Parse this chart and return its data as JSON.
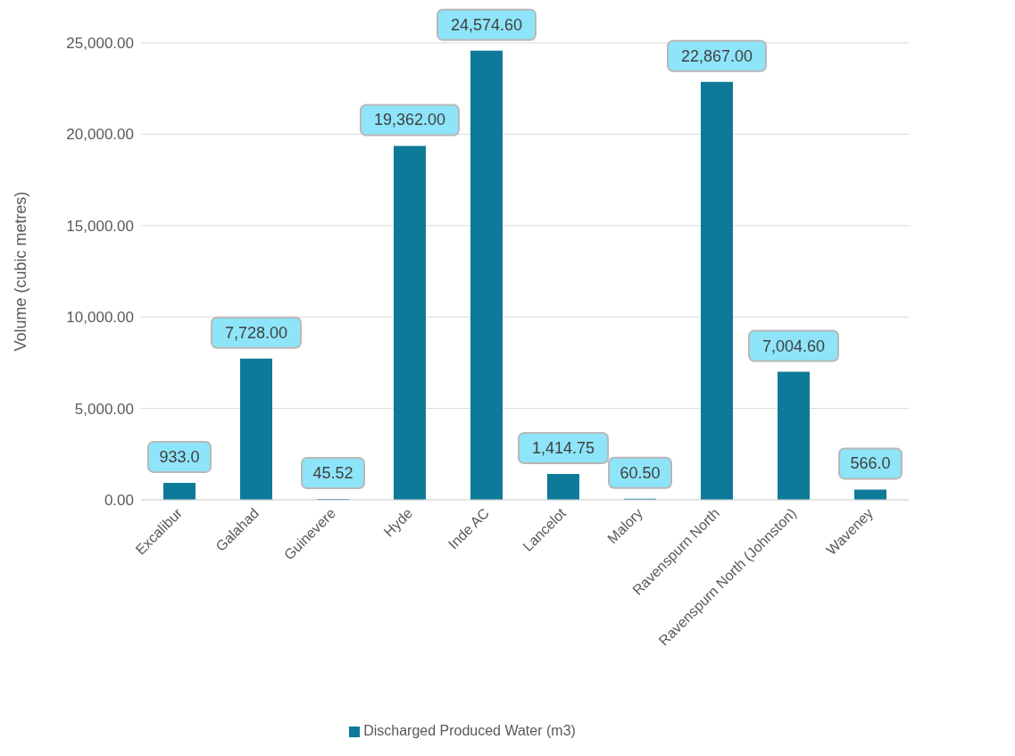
{
  "chart_data": {
    "type": "bar",
    "ylabel": "Volume (cubic metres)",
    "categories": [
      "Excalibur",
      "Galahad",
      "Guinevere",
      "Hyde",
      "Inde AC",
      "Lancelot",
      "Malory",
      "Ravenspurn North",
      "Ravenspurn North (Johnston)",
      "Waveney"
    ],
    "series": [
      {
        "name": "Discharged Produced Water (m3)",
        "color": "#0e7a9a",
        "values": [
          933,
          7728,
          45.52,
          19362,
          24574.6,
          1414.75,
          60.5,
          22867,
          7004.6,
          566
        ],
        "value_labels": [
          "933.0",
          "7,728.00",
          "45.52",
          "19,362.00",
          "24,574.60",
          "1,414.75",
          "60.50",
          "22,867.00",
          "7,004.60",
          "566.0"
        ]
      }
    ],
    "ylim": [
      0,
      25000
    ],
    "yticks": [
      {
        "value": 0,
        "label": "0.00"
      },
      {
        "value": 5000,
        "label": "5,000.00"
      },
      {
        "value": 10000,
        "label": "10,000.00"
      },
      {
        "value": 15000,
        "label": "15,000.00"
      },
      {
        "value": 20000,
        "label": "20,000.00"
      },
      {
        "value": 25000,
        "label": "25,000.00"
      }
    ],
    "grid": "y",
    "legend": "bottom"
  }
}
